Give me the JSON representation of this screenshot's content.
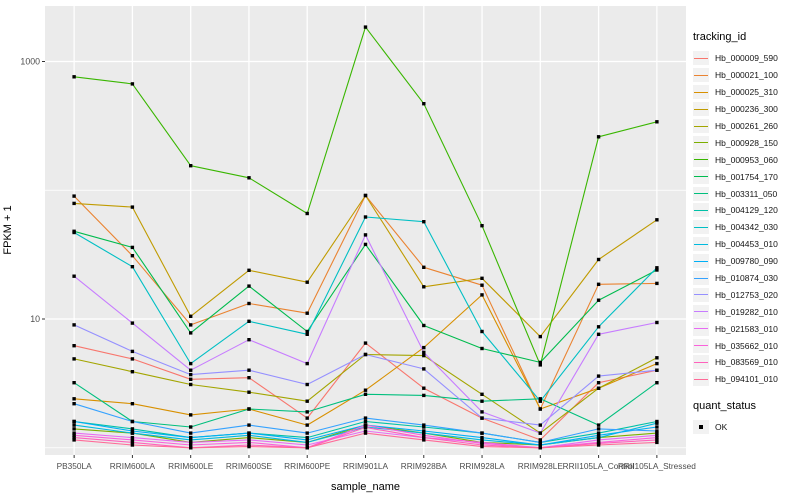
{
  "chart_data": {
    "type": "line",
    "title": "",
    "x_axis": {
      "label": "sample_name",
      "categories": [
        "PB350LA",
        "RRIM600LA",
        "RRIM600LE",
        "RRIM600SE",
        "RRIM600PE",
        "RRIM901LA",
        "RRIM928BA",
        "RRIM928LA",
        "RRIM928LE",
        "RRII105LA_Control",
        "RRII105LA_Stressed"
      ]
    },
    "y_axis": {
      "label": "FPKM + 1",
      "scale": "log10",
      "tick_labels": [
        "1000",
        "10"
      ],
      "tick_values": [
        1000,
        10
      ],
      "minor_gridline_values": [
        100,
        1
      ],
      "range_approx": [
        0.9,
        2700
      ]
    },
    "legend": {
      "title": "tracking_id"
    },
    "legend2": {
      "title": "quant_status",
      "items": [
        {
          "label": "OK",
          "marker": "black-square"
        }
      ]
    },
    "panel_bg": "#EBEBEB",
    "gridline_color": "#FFFFFF",
    "point_color": "#000000",
    "series": [
      {
        "name": "Hb_000009_590",
        "color": "#F8766D",
        "values": [
          6.2,
          4.9,
          3.4,
          3.5,
          1.7,
          6.5,
          2.9,
          1.7,
          1.15,
          3.2,
          4.0
        ]
      },
      {
        "name": "Hb_000021_100",
        "color": "#EA8331",
        "values": [
          90,
          31,
          9,
          13.2,
          11.1,
          91,
          25.2,
          18.3,
          2.0,
          18.6,
          18.9
        ]
      },
      {
        "name": "Hb_000025_310",
        "color": "#D89000",
        "values": [
          2.4,
          2.2,
          1.8,
          2.0,
          1.5,
          2.8,
          6.0,
          15.4,
          2.0,
          2.9,
          4.5
        ]
      },
      {
        "name": "Hb_000236_300",
        "color": "#C09B00",
        "values": [
          79,
          74,
          10.5,
          23.9,
          19.3,
          91,
          17.8,
          20.7,
          7.3,
          29,
          59
        ]
      },
      {
        "name": "Hb_000261_260",
        "color": "#A3A500",
        "values": [
          4.9,
          3.9,
          3.1,
          2.7,
          2.3,
          5.3,
          5.2,
          2.6,
          1.3,
          2.9,
          5.0
        ]
      },
      {
        "name": "Hb_000928_150",
        "color": "#7CAE00",
        "values": [
          1.4,
          1.3,
          1.1,
          1.2,
          1.1,
          1.5,
          1.3,
          1.1,
          1.05,
          1.2,
          1.3
        ]
      },
      {
        "name": "Hb_000953_060",
        "color": "#39B600",
        "values": [
          760,
          670,
          155,
          125,
          66,
          1850,
          470,
          53,
          4.4,
          260,
          340
        ]
      },
      {
        "name": "Hb_001754_170",
        "color": "#00BB4E",
        "values": [
          48,
          36,
          7.8,
          18,
          8.0,
          38,
          8.9,
          5.9,
          4.6,
          14,
          24
        ]
      },
      {
        "name": "Hb_003311_050",
        "color": "#00BF7D",
        "values": [
          3.2,
          1.6,
          1.45,
          2.0,
          1.9,
          2.6,
          2.55,
          2.3,
          2.4,
          1.5,
          3.2
        ]
      },
      {
        "name": "Hb_004129_120",
        "color": "#00C1A7",
        "values": [
          1.6,
          1.4,
          1.2,
          1.3,
          1.2,
          1.6,
          1.45,
          1.3,
          1.1,
          1.3,
          1.6
        ]
      },
      {
        "name": "Hb_004342_030",
        "color": "#00BFC4",
        "values": [
          47,
          25.5,
          4.5,
          9.6,
          7.6,
          62,
          57,
          8.0,
          2.3,
          8.7,
          25
        ]
      },
      {
        "name": "Hb_004453_010",
        "color": "#00BADE",
        "values": [
          1.5,
          1.3,
          1.15,
          1.25,
          1.1,
          1.45,
          1.3,
          1.15,
          1.05,
          1.2,
          1.55
        ]
      },
      {
        "name": "Hb_009780_090",
        "color": "#00B0F6",
        "values": [
          1.6,
          1.35,
          1.2,
          1.3,
          1.15,
          1.5,
          1.35,
          1.2,
          1.05,
          1.25,
          1.45
        ]
      },
      {
        "name": "Hb_010874_030",
        "color": "#35A2FF",
        "values": [
          2.2,
          1.6,
          1.3,
          1.5,
          1.3,
          1.7,
          1.5,
          1.3,
          1.1,
          1.4,
          1.35
        ]
      },
      {
        "name": "Hb_012753_020",
        "color": "#9590FF",
        "values": [
          9.0,
          5.6,
          3.7,
          4.0,
          3.1,
          5.3,
          4.1,
          1.7,
          1.5,
          3.6,
          4.0
        ]
      },
      {
        "name": "Hb_019282_010",
        "color": "#C77CFF",
        "values": [
          21.5,
          9.3,
          4.0,
          6.9,
          4.5,
          45,
          5.5,
          1.9,
          1.3,
          7.6,
          9.4
        ]
      },
      {
        "name": "Hb_021583_010",
        "color": "#E76BF3",
        "values": [
          1.3,
          1.2,
          1.1,
          1.15,
          1.05,
          1.35,
          1.2,
          1.1,
          1.0,
          1.15,
          1.25
        ]
      },
      {
        "name": "Hb_035662_010",
        "color": "#FA62DB",
        "values": [
          1.25,
          1.15,
          1.05,
          1.1,
          1.0,
          1.5,
          1.25,
          1.08,
          1.0,
          1.1,
          1.2
        ]
      },
      {
        "name": "Hb_083569_010",
        "color": "#FF62BC",
        "values": [
          1.2,
          1.1,
          1.0,
          1.05,
          1.0,
          1.44,
          1.2,
          1.05,
          1.0,
          1.08,
          1.15
        ]
      },
      {
        "name": "Hb_094101_010",
        "color": "#FF6A98",
        "values": [
          1.15,
          1.05,
          1.0,
          1.02,
          1.0,
          1.3,
          1.15,
          1.02,
          1.0,
          1.05,
          1.1
        ]
      }
    ]
  }
}
